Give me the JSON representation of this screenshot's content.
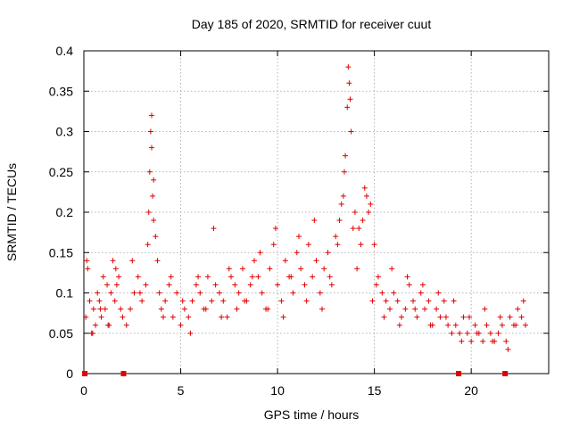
{
  "chart_data": {
    "type": "scatter",
    "title": "Day 185 of 2020, SRMTID for receiver cuut",
    "xlabel": "GPS time / hours",
    "ylabel": "SRMTID / TECUs",
    "xlim": [
      0,
      24
    ],
    "ylim": [
      0,
      0.4
    ],
    "x_ticks": [
      0,
      5,
      10,
      15,
      20
    ],
    "x_tick_labels": [
      "0",
      "5",
      "10",
      "15",
      "20"
    ],
    "y_ticks": [
      0,
      0.05,
      0.1,
      0.15,
      0.2,
      0.25,
      0.3,
      0.35,
      0.4
    ],
    "y_tick_labels": [
      "0",
      "0.05",
      "0.1",
      "0.15",
      "0.2",
      "0.25",
      "0.3",
      "0.35",
      "0.4"
    ],
    "grid": true,
    "legend": "none",
    "point_color": "#e00000",
    "zero_markers_x": [
      0.05,
      2.05,
      19.35,
      21.75
    ],
    "series": [
      {
        "x": [
          0.1,
          0.2,
          0.3,
          0.4,
          0.5,
          0.6,
          0.7,
          0.8,
          0.9,
          1.0,
          1.1,
          1.2,
          1.3,
          1.4,
          1.5,
          1.6,
          1.7,
          1.8,
          1.9,
          2.0,
          2.2,
          2.4,
          2.6,
          2.8,
          3.0,
          3.2,
          3.3,
          3.4,
          3.45,
          3.5,
          3.55,
          3.6,
          3.7,
          3.8,
          3.9,
          4.0,
          4.2,
          4.4,
          4.6,
          4.8,
          5.0,
          5.2,
          5.4,
          5.6,
          5.8,
          6.0,
          6.2,
          6.4,
          6.6,
          6.8,
          7.0,
          7.2,
          7.4,
          7.6,
          7.8,
          8.0,
          8.2,
          8.4,
          8.6,
          8.8,
          9.0,
          9.2,
          9.4,
          9.6,
          9.8,
          10.0,
          10.2,
          10.4,
          10.6,
          10.8,
          11.0,
          11.2,
          11.4,
          11.6,
          11.8,
          12.0,
          12.2,
          12.4,
          12.6,
          12.8,
          13.0,
          13.2,
          13.4,
          13.5,
          13.6,
          13.7,
          13.8,
          14.0,
          14.2,
          14.4,
          14.6,
          14.8,
          15.0,
          15.2,
          15.4,
          15.6,
          15.8,
          16.0,
          16.2,
          16.4,
          16.6,
          16.8,
          17.0,
          17.2,
          17.4,
          17.6,
          17.8,
          18.0,
          18.2,
          18.4,
          18.6,
          18.8,
          19.0,
          19.2,
          19.4,
          19.6,
          19.8,
          20.0,
          20.2,
          20.4,
          20.6,
          20.8,
          21.0,
          21.2,
          21.4,
          21.6,
          21.8,
          22.0,
          22.2,
          22.4,
          22.6,
          22.8,
          0.15,
          0.45,
          0.85,
          1.25,
          1.65,
          2.5,
          2.9,
          3.35,
          3.5,
          3.6,
          4.1,
          4.5,
          5.1,
          5.5,
          5.9,
          6.3,
          6.7,
          7.1,
          7.5,
          7.9,
          8.3,
          8.7,
          9.1,
          9.5,
          9.9,
          10.3,
          10.7,
          11.1,
          11.5,
          11.9,
          12.3,
          12.7,
          13.1,
          13.3,
          13.45,
          13.65,
          13.75,
          13.9,
          14.1,
          14.3,
          14.5,
          14.7,
          14.9,
          15.1,
          15.5,
          15.9,
          16.3,
          16.7,
          17.1,
          17.5,
          17.9,
          18.3,
          18.7,
          19.1,
          19.5,
          19.9,
          20.3,
          20.7,
          21.1,
          21.5,
          21.9,
          22.3,
          22.7
        ],
        "y": [
          0.07,
          0.13,
          0.09,
          0.05,
          0.08,
          0.06,
          0.1,
          0.09,
          0.07,
          0.12,
          0.08,
          0.11,
          0.06,
          0.1,
          0.14,
          0.09,
          0.11,
          0.12,
          0.08,
          0.07,
          0.06,
          0.08,
          0.1,
          0.12,
          0.09,
          0.11,
          0.16,
          0.25,
          0.3,
          0.32,
          0.22,
          0.19,
          0.17,
          0.14,
          0.1,
          0.08,
          0.09,
          0.11,
          0.07,
          0.1,
          0.06,
          0.08,
          0.07,
          0.09,
          0.11,
          0.1,
          0.08,
          0.12,
          0.09,
          0.11,
          0.1,
          0.09,
          0.07,
          0.12,
          0.11,
          0.1,
          0.13,
          0.09,
          0.11,
          0.14,
          0.12,
          0.1,
          0.08,
          0.13,
          0.16,
          0.11,
          0.09,
          0.14,
          0.12,
          0.1,
          0.15,
          0.13,
          0.11,
          0.16,
          0.12,
          0.14,
          0.1,
          0.13,
          0.15,
          0.11,
          0.17,
          0.19,
          0.22,
          0.27,
          0.33,
          0.36,
          0.3,
          0.2,
          0.18,
          0.19,
          0.22,
          0.21,
          0.16,
          0.12,
          0.1,
          0.09,
          0.08,
          0.1,
          0.09,
          0.07,
          0.08,
          0.11,
          0.09,
          0.07,
          0.1,
          0.08,
          0.09,
          0.06,
          0.08,
          0.07,
          0.09,
          0.06,
          0.05,
          0.06,
          0.05,
          0.07,
          0.05,
          0.04,
          0.06,
          0.05,
          0.04,
          0.06,
          0.05,
          0.04,
          0.05,
          0.06,
          0.04,
          0.07,
          0.06,
          0.08,
          0.07,
          0.06,
          0.14,
          0.05,
          0.08,
          0.06,
          0.13,
          0.14,
          0.1,
          0.2,
          0.28,
          0.24,
          0.07,
          0.12,
          0.09,
          0.05,
          0.12,
          0.08,
          0.18,
          0.07,
          0.13,
          0.08,
          0.09,
          0.12,
          0.15,
          0.08,
          0.18,
          0.07,
          0.12,
          0.17,
          0.09,
          0.19,
          0.08,
          0.12,
          0.16,
          0.21,
          0.25,
          0.38,
          0.34,
          0.18,
          0.13,
          0.16,
          0.23,
          0.2,
          0.09,
          0.11,
          0.07,
          0.13,
          0.06,
          0.12,
          0.08,
          0.11,
          0.06,
          0.1,
          0.07,
          0.09,
          0.04,
          0.07,
          0.05,
          0.08,
          0.04,
          0.07,
          0.03,
          0.06,
          0.09
        ]
      }
    ]
  }
}
